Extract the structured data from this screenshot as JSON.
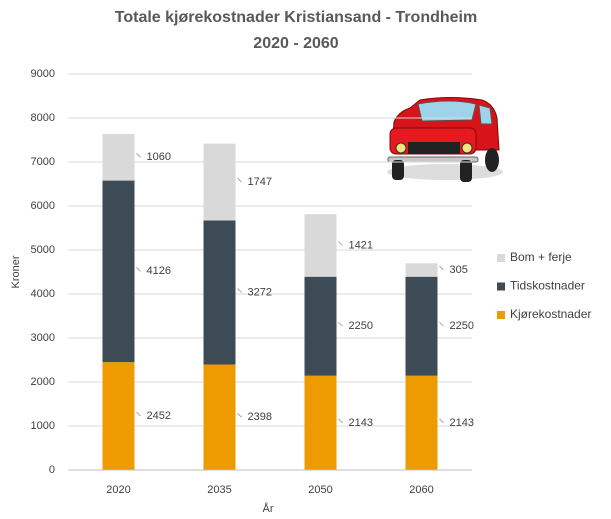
{
  "chart_data": {
    "type": "stacked_bar",
    "title": "Totale kjørekostnader Kristiansand - Trondheim",
    "subtitle": "2020 - 2060",
    "x_label": "År",
    "y_label": "Kroner",
    "categories": [
      "2020",
      "2035",
      "2050",
      "2060"
    ],
    "series": [
      {
        "name": "Kjørekostnader",
        "color": "#ed9b00",
        "values": [
          2452,
          2398,
          2143,
          2143
        ]
      },
      {
        "name": "Tidskostnader",
        "color": "#3d4b56",
        "values": [
          4126,
          3272,
          2250,
          2250
        ]
      },
      {
        "name": "Bom + ferje",
        "color": "#d9d9d9",
        "values": [
          1060,
          1747,
          1421,
          305
        ]
      }
    ],
    "ylim": [
      0,
      9000
    ],
    "yticks": [
      0,
      1000,
      2000,
      3000,
      4000,
      5000,
      6000,
      7000,
      8000,
      9000
    ],
    "grid": true,
    "legend": "right"
  }
}
